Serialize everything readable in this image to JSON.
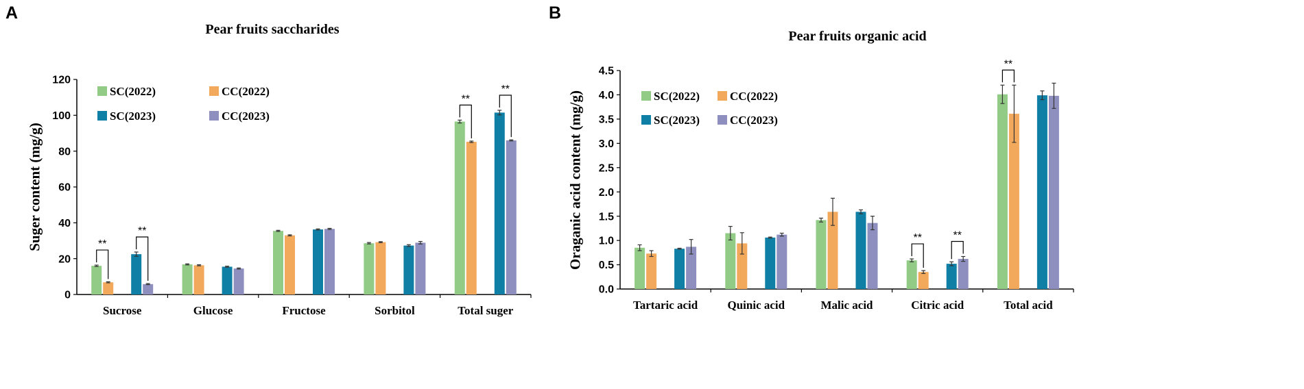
{
  "colors": {
    "SC2022": "#92cb85",
    "CC2022": "#f3a95b",
    "SC2023": "#0f7fa6",
    "CC2023": "#8e8fbf",
    "axis": "#000000",
    "error": "#333333"
  },
  "chart_data": [
    {
      "panel": "A",
      "type": "bar",
      "title": "Pear fruits saccharides",
      "xlabel": "",
      "ylabel": "Suger content (mg/g)",
      "ylim": [
        0,
        120
      ],
      "yticks": [
        0,
        20,
        40,
        60,
        80,
        100,
        120
      ],
      "ytick_labels": [
        "0",
        "20",
        "40",
        "60",
        "80",
        "100",
        "120"
      ],
      "categories": [
        "Sucrose",
        "Glucose",
        "Fructose",
        "Sorbitol",
        "Total suger"
      ],
      "series": [
        {
          "name": "SC(2022)",
          "key": "SC2022",
          "values": [
            16.0,
            16.8,
            35.5,
            28.6,
            96.5
          ],
          "errors": [
            0.4,
            0.3,
            0.3,
            0.4,
            0.8
          ]
        },
        {
          "name": "CC(2022)",
          "key": "CC2022",
          "values": [
            6.8,
            16.3,
            33.0,
            29.2,
            85.2
          ],
          "errors": [
            0.3,
            0.3,
            0.3,
            0.3,
            0.4
          ]
        },
        {
          "name": "SC(2023)",
          "key": "SC2023",
          "values": [
            22.5,
            15.5,
            36.3,
            27.3,
            101.5
          ],
          "errors": [
            1.2,
            0.3,
            0.3,
            0.5,
            1.3
          ]
        },
        {
          "name": "CC(2023)",
          "key": "CC2023",
          "values": [
            5.8,
            14.5,
            36.6,
            28.9,
            86.0
          ],
          "errors": [
            0.3,
            0.3,
            0.3,
            0.7,
            0.3
          ]
        }
      ],
      "legend": [
        "SC(2022)",
        "CC(2022)",
        "SC(2023)",
        "CC(2023)"
      ],
      "legend_position": "top-left",
      "annotations": [
        {
          "text": "**",
          "category": "Sucrose",
          "pair": "2022",
          "from": 0,
          "to": 1
        },
        {
          "text": "**",
          "category": "Sucrose",
          "pair": "2023",
          "from": 2,
          "to": 3
        },
        {
          "text": "**",
          "category": "Total suger",
          "pair": "2022",
          "from": 0,
          "to": 1
        },
        {
          "text": "**",
          "category": "Total suger",
          "pair": "2023",
          "from": 2,
          "to": 3
        }
      ]
    },
    {
      "panel": "B",
      "type": "bar",
      "title": "Pear fruits organic acid",
      "xlabel": "",
      "ylabel": "Oraganic acid content (mg/g)",
      "ylim": [
        0,
        4.5
      ],
      "yticks": [
        0,
        0.5,
        1.0,
        1.5,
        2.0,
        2.5,
        3.0,
        3.5,
        4.0,
        4.5
      ],
      "ytick_labels": [
        "0.0",
        "0.5",
        "1.0",
        "1.5",
        "2.0",
        "2.5",
        "3.0",
        "3.5",
        "4.0",
        "4.5"
      ],
      "categories": [
        "Tartaric acid",
        "Quinic acid",
        "Malic acid",
        "Citric acid",
        "Total acid"
      ],
      "series": [
        {
          "name": "SC(2022)",
          "key": "SC2022",
          "values": [
            0.85,
            1.15,
            1.42,
            0.59,
            4.01
          ],
          "errors": [
            0.06,
            0.14,
            0.04,
            0.03,
            0.19
          ]
        },
        {
          "name": "CC(2022)",
          "key": "CC2022",
          "values": [
            0.73,
            0.94,
            1.59,
            0.35,
            3.61
          ],
          "errors": [
            0.06,
            0.22,
            0.28,
            0.03,
            0.59
          ]
        },
        {
          "name": "SC(2023)",
          "key": "SC2023",
          "values": [
            0.83,
            1.06,
            1.59,
            0.52,
            3.99
          ],
          "errors": [
            0.01,
            0.01,
            0.04,
            0.04,
            0.09
          ]
        },
        {
          "name": "CC(2023)",
          "key": "CC2023",
          "values": [
            0.87,
            1.12,
            1.36,
            0.62,
            3.98
          ],
          "errors": [
            0.15,
            0.03,
            0.14,
            0.05,
            0.26
          ]
        }
      ],
      "legend": [
        "SC(2022)",
        "CC(2022)",
        "SC(2023)",
        "CC(2023)"
      ],
      "legend_position": "top-left",
      "annotations": [
        {
          "text": "**",
          "category": "Citric acid",
          "pair": "2022",
          "from": 0,
          "to": 1
        },
        {
          "text": "**",
          "category": "Citric acid",
          "pair": "2023",
          "from": 2,
          "to": 3
        },
        {
          "text": "**",
          "category": "Total acid",
          "pair": "2022",
          "from": 0,
          "to": 1
        }
      ]
    }
  ]
}
